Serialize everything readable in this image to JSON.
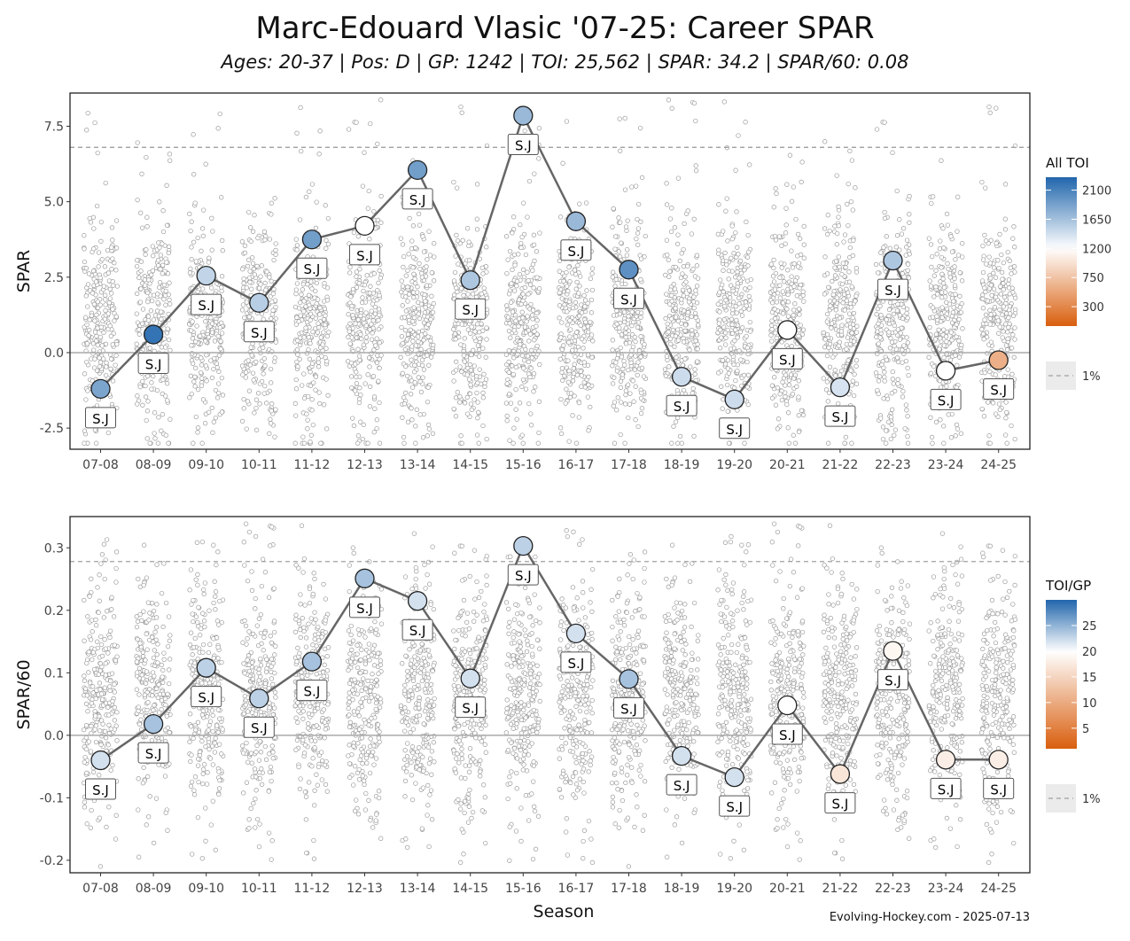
{
  "title": "Marc-Edouard Vlasic '07-25: Career SPAR",
  "subtitle": "Ages: 20-37 | Pos: D | GP: 1242 | TOI: 25,562 | SPAR: 34.2 | SPAR/60: 0.08",
  "credit": "Evolving-Hockey.com - 2025-07-13",
  "xlabel": "Season",
  "chart_data": [
    {
      "type": "line",
      "ylabel": "SPAR",
      "ylim": [
        -3.2,
        8.6
      ],
      "yticks": [
        -2.5,
        0,
        2.5,
        5,
        7.5
      ],
      "ytick_labels": [
        "-2.5",
        "0.0",
        "2.5",
        "5.0",
        "7.5"
      ],
      "reference_zero": 0,
      "percentile_line": 6.8,
      "categories": [
        "07-08",
        "08-09",
        "09-10",
        "10-11",
        "11-12",
        "12-13",
        "13-14",
        "14-15",
        "15-16",
        "16-17",
        "17-18",
        "18-19",
        "19-20",
        "20-21",
        "21-22",
        "22-23",
        "23-24",
        "24-25"
      ],
      "values": [
        -1.2,
        0.6,
        2.55,
        1.65,
        3.75,
        4.2,
        6.05,
        2.4,
        7.85,
        4.35,
        2.75,
        -0.8,
        -1.55,
        0.75,
        -1.15,
        3.05,
        -0.6,
        -0.25
      ],
      "color_values": [
        1850,
        2200,
        1500,
        1550,
        1900,
        1200,
        1900,
        1600,
        1700,
        1700,
        2000,
        1450,
        1450,
        1200,
        1400,
        1600,
        1200,
        600
      ],
      "point_labels": [
        "S.J",
        "S.J",
        "S.J",
        "S.J",
        "S.J",
        "S.J",
        "S.J",
        "S.J",
        "S.J",
        "S.J",
        "S.J",
        "S.J",
        "S.J",
        "S.J",
        "S.J",
        "S.J",
        "S.J",
        "S.J"
      ],
      "label_position": [
        "below",
        "below",
        "below",
        "below",
        "below",
        "above",
        "below",
        "below",
        "below",
        "below",
        "below",
        "below",
        "below",
        "below",
        "below",
        "below",
        "below",
        "below"
      ],
      "league_distribution": {
        "min": -3.0,
        "max": 8.4,
        "center": 0.9,
        "spread": 1.7
      },
      "legend": {
        "title": "All TOI",
        "range": [
          0,
          2300
        ],
        "ticks": [
          2100,
          1650,
          1200,
          750,
          300
        ],
        "tick_labels": [
          "2100",
          "1650",
          "1200",
          "750",
          "300"
        ],
        "scale": "blue-white-orange",
        "midpoint": 1200,
        "percentile_label": "1%"
      }
    },
    {
      "type": "line",
      "ylabel": "SPAR/60",
      "ylim": [
        -0.22,
        0.35
      ],
      "yticks": [
        -0.2,
        -0.1,
        0,
        0.1,
        0.2,
        0.3
      ],
      "ytick_labels": [
        "-0.2",
        "-0.1",
        "0.0",
        "0.1",
        "0.2",
        "0.3"
      ],
      "reference_zero": 0,
      "percentile_line": 0.278,
      "categories": [
        "07-08",
        "08-09",
        "09-10",
        "10-11",
        "11-12",
        "12-13",
        "13-14",
        "14-15",
        "15-16",
        "16-17",
        "17-18",
        "18-19",
        "19-20",
        "20-21",
        "21-22",
        "22-23",
        "23-24",
        "24-25"
      ],
      "values": [
        -0.04,
        0.018,
        0.108,
        0.059,
        0.118,
        0.251,
        0.215,
        0.091,
        0.303,
        0.163,
        0.09,
        -0.033,
        -0.067,
        0.048,
        -0.062,
        0.135,
        -0.039,
        -0.039
      ],
      "color_values": [
        22,
        24,
        23,
        23,
        24,
        24,
        22,
        22,
        23,
        22,
        24,
        22,
        22,
        20,
        17,
        19,
        18,
        18
      ],
      "point_labels": [
        "S.J",
        "S.J",
        "S.J",
        "S.J",
        "S.J",
        "S.J",
        "S.J",
        "S.J",
        "S.J",
        "S.J",
        "S.J",
        "S.J",
        "S.J",
        "S.J",
        "S.J",
        "S.J",
        "S.J",
        "S.J"
      ],
      "label_position": [
        "below",
        "below",
        "below",
        "below",
        "below",
        "below",
        "below",
        "below",
        "below",
        "below",
        "below",
        "below",
        "below",
        "below",
        "below",
        "below",
        "below",
        "below"
      ],
      "league_distribution": {
        "min": -0.21,
        "max": 0.34,
        "center": 0.06,
        "spread": 0.09
      },
      "legend": {
        "title": "TOI/GP",
        "range": [
          1,
          30
        ],
        "ticks": [
          25,
          20,
          15,
          10,
          5
        ],
        "tick_labels": [
          "25",
          "20",
          "15",
          "10",
          "5"
        ],
        "scale": "blue-white-orange",
        "midpoint": 20,
        "percentile_label": "1%"
      }
    }
  ],
  "colors": {
    "high": "#2166ac",
    "mid": "#ffffff",
    "low": "#d95f0e",
    "line": "#666666",
    "jitter": "#9a9a9a",
    "percentile": "#a0a0a0"
  }
}
